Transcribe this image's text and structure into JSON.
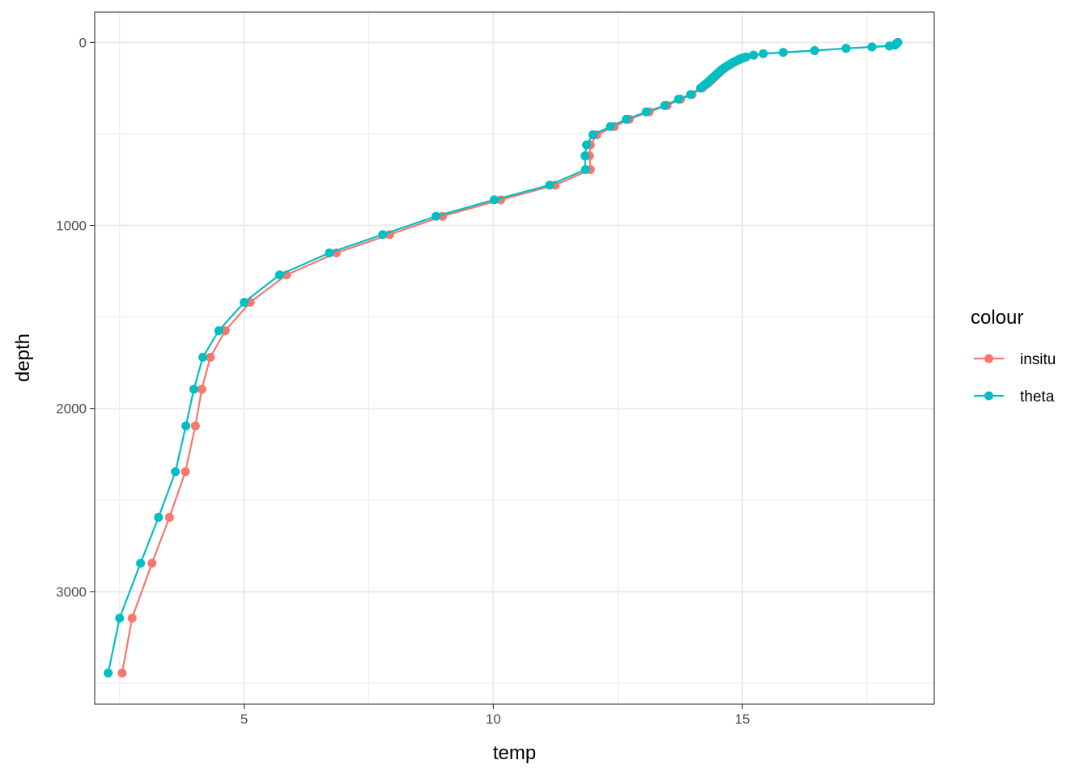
{
  "chart_data": {
    "type": "line",
    "title": "",
    "xlabel": "temp",
    "ylabel": "depth",
    "xlim": [
      2.0,
      18.85
    ],
    "ylim": [
      3615,
      -165
    ],
    "y_reversed": true,
    "x_ticks": [
      5,
      10,
      15
    ],
    "x_tick_labels": [
      "5",
      "10",
      "15"
    ],
    "x_minor_ticks": [
      2.5,
      7.5,
      12.5,
      17.5
    ],
    "y_ticks": [
      0,
      1000,
      2000,
      3000
    ],
    "y_tick_labels": [
      "0",
      "1000",
      "2000",
      "3000"
    ],
    "y_minor_ticks": [
      500,
      1500,
      2500,
      3500
    ],
    "grid": true,
    "legend": {
      "title": "colour",
      "placement": "right",
      "entries": [
        "insitu",
        "theta"
      ]
    },
    "series": [
      {
        "name": "insitu",
        "color": "#F8766D",
        "points": [
          {
            "x": 18.12,
            "y": 0
          },
          {
            "x": 18.1,
            "y": 5
          },
          {
            "x": 18.08,
            "y": 10
          },
          {
            "x": 18.06,
            "y": 15
          },
          {
            "x": 17.95,
            "y": 20
          },
          {
            "x": 17.6,
            "y": 25
          },
          {
            "x": 17.08,
            "y": 33
          },
          {
            "x": 16.45,
            "y": 45
          },
          {
            "x": 15.82,
            "y": 55
          },
          {
            "x": 15.42,
            "y": 62
          },
          {
            "x": 15.23,
            "y": 70
          },
          {
            "x": 15.08,
            "y": 80
          },
          {
            "x": 15.02,
            "y": 85
          },
          {
            "x": 14.97,
            "y": 90
          },
          {
            "x": 14.93,
            "y": 95
          },
          {
            "x": 14.89,
            "y": 100
          },
          {
            "x": 14.86,
            "y": 105
          },
          {
            "x": 14.82,
            "y": 110
          },
          {
            "x": 14.79,
            "y": 115
          },
          {
            "x": 14.76,
            "y": 120
          },
          {
            "x": 14.73,
            "y": 125
          },
          {
            "x": 14.7,
            "y": 130
          },
          {
            "x": 14.67,
            "y": 135
          },
          {
            "x": 14.65,
            "y": 140
          },
          {
            "x": 14.62,
            "y": 145
          },
          {
            "x": 14.6,
            "y": 150
          },
          {
            "x": 14.58,
            "y": 155
          },
          {
            "x": 14.56,
            "y": 160
          },
          {
            "x": 14.54,
            "y": 165
          },
          {
            "x": 14.52,
            "y": 170
          },
          {
            "x": 14.5,
            "y": 175
          },
          {
            "x": 14.48,
            "y": 180
          },
          {
            "x": 14.46,
            "y": 185
          },
          {
            "x": 14.44,
            "y": 190
          },
          {
            "x": 14.42,
            "y": 195
          },
          {
            "x": 14.4,
            "y": 200
          },
          {
            "x": 14.38,
            "y": 205
          },
          {
            "x": 14.36,
            "y": 210
          },
          {
            "x": 14.34,
            "y": 215
          },
          {
            "x": 14.32,
            "y": 220
          },
          {
            "x": 14.3,
            "y": 225
          },
          {
            "x": 14.27,
            "y": 230
          },
          {
            "x": 14.24,
            "y": 237
          },
          {
            "x": 14.19,
            "y": 250
          },
          {
            "x": 13.99,
            "y": 285
          },
          {
            "x": 13.76,
            "y": 310
          },
          {
            "x": 13.49,
            "y": 345
          },
          {
            "x": 13.13,
            "y": 380
          },
          {
            "x": 12.73,
            "y": 420
          },
          {
            "x": 12.43,
            "y": 460
          },
          {
            "x": 12.08,
            "y": 505
          },
          {
            "x": 11.95,
            "y": 560
          },
          {
            "x": 11.93,
            "y": 620
          },
          {
            "x": 11.95,
            "y": 695
          },
          {
            "x": 11.24,
            "y": 780
          },
          {
            "x": 10.15,
            "y": 860
          },
          {
            "x": 8.98,
            "y": 950
          },
          {
            "x": 7.92,
            "y": 1050
          },
          {
            "x": 6.85,
            "y": 1150
          },
          {
            "x": 5.85,
            "y": 1270
          },
          {
            "x": 5.12,
            "y": 1420
          },
          {
            "x": 4.62,
            "y": 1575
          },
          {
            "x": 4.32,
            "y": 1720
          },
          {
            "x": 4.15,
            "y": 1895
          },
          {
            "x": 4.02,
            "y": 2095
          },
          {
            "x": 3.82,
            "y": 2345
          },
          {
            "x": 3.5,
            "y": 2595
          },
          {
            "x": 3.15,
            "y": 2845
          },
          {
            "x": 2.75,
            "y": 3145
          },
          {
            "x": 2.55,
            "y": 3445
          }
        ]
      },
      {
        "name": "theta",
        "color": "#00BFC4",
        "points": [
          {
            "x": 18.12,
            "y": 0
          },
          {
            "x": 18.1,
            "y": 5
          },
          {
            "x": 18.08,
            "y": 10
          },
          {
            "x": 18.06,
            "y": 15
          },
          {
            "x": 17.95,
            "y": 20
          },
          {
            "x": 17.6,
            "y": 25
          },
          {
            "x": 17.08,
            "y": 33
          },
          {
            "x": 16.45,
            "y": 45
          },
          {
            "x": 15.82,
            "y": 55
          },
          {
            "x": 15.42,
            "y": 62
          },
          {
            "x": 15.22,
            "y": 70
          },
          {
            "x": 15.07,
            "y": 80
          },
          {
            "x": 15.01,
            "y": 85
          },
          {
            "x": 14.96,
            "y": 90
          },
          {
            "x": 14.92,
            "y": 95
          },
          {
            "x": 14.88,
            "y": 100
          },
          {
            "x": 14.85,
            "y": 105
          },
          {
            "x": 14.81,
            "y": 110
          },
          {
            "x": 14.78,
            "y": 115
          },
          {
            "x": 14.75,
            "y": 120
          },
          {
            "x": 14.72,
            "y": 125
          },
          {
            "x": 14.69,
            "y": 130
          },
          {
            "x": 14.66,
            "y": 135
          },
          {
            "x": 14.63,
            "y": 140
          },
          {
            "x": 14.61,
            "y": 145
          },
          {
            "x": 14.58,
            "y": 150
          },
          {
            "x": 14.56,
            "y": 155
          },
          {
            "x": 14.54,
            "y": 160
          },
          {
            "x": 14.52,
            "y": 165
          },
          {
            "x": 14.5,
            "y": 170
          },
          {
            "x": 14.48,
            "y": 175
          },
          {
            "x": 14.46,
            "y": 180
          },
          {
            "x": 14.44,
            "y": 185
          },
          {
            "x": 14.42,
            "y": 190
          },
          {
            "x": 14.4,
            "y": 195
          },
          {
            "x": 14.38,
            "y": 200
          },
          {
            "x": 14.36,
            "y": 205
          },
          {
            "x": 14.34,
            "y": 210
          },
          {
            "x": 14.32,
            "y": 215
          },
          {
            "x": 14.3,
            "y": 220
          },
          {
            "x": 14.28,
            "y": 225
          },
          {
            "x": 14.25,
            "y": 230
          },
          {
            "x": 14.22,
            "y": 237
          },
          {
            "x": 14.16,
            "y": 250
          },
          {
            "x": 13.96,
            "y": 285
          },
          {
            "x": 13.72,
            "y": 310
          },
          {
            "x": 13.44,
            "y": 345
          },
          {
            "x": 13.07,
            "y": 380
          },
          {
            "x": 12.67,
            "y": 420
          },
          {
            "x": 12.35,
            "y": 460
          },
          {
            "x": 12.0,
            "y": 505
          },
          {
            "x": 11.87,
            "y": 560
          },
          {
            "x": 11.84,
            "y": 620
          },
          {
            "x": 11.85,
            "y": 695
          },
          {
            "x": 11.13,
            "y": 780
          },
          {
            "x": 10.02,
            "y": 860
          },
          {
            "x": 8.85,
            "y": 950
          },
          {
            "x": 7.78,
            "y": 1050
          },
          {
            "x": 6.71,
            "y": 1150
          },
          {
            "x": 5.71,
            "y": 1270
          },
          {
            "x": 5.0,
            "y": 1420
          },
          {
            "x": 4.49,
            "y": 1575
          },
          {
            "x": 4.17,
            "y": 1720
          },
          {
            "x": 3.99,
            "y": 1895
          },
          {
            "x": 3.83,
            "y": 2095
          },
          {
            "x": 3.62,
            "y": 2345
          },
          {
            "x": 3.28,
            "y": 2595
          },
          {
            "x": 2.92,
            "y": 2845
          },
          {
            "x": 2.5,
            "y": 3145
          },
          {
            "x": 2.27,
            "y": 3445
          }
        ]
      }
    ]
  }
}
